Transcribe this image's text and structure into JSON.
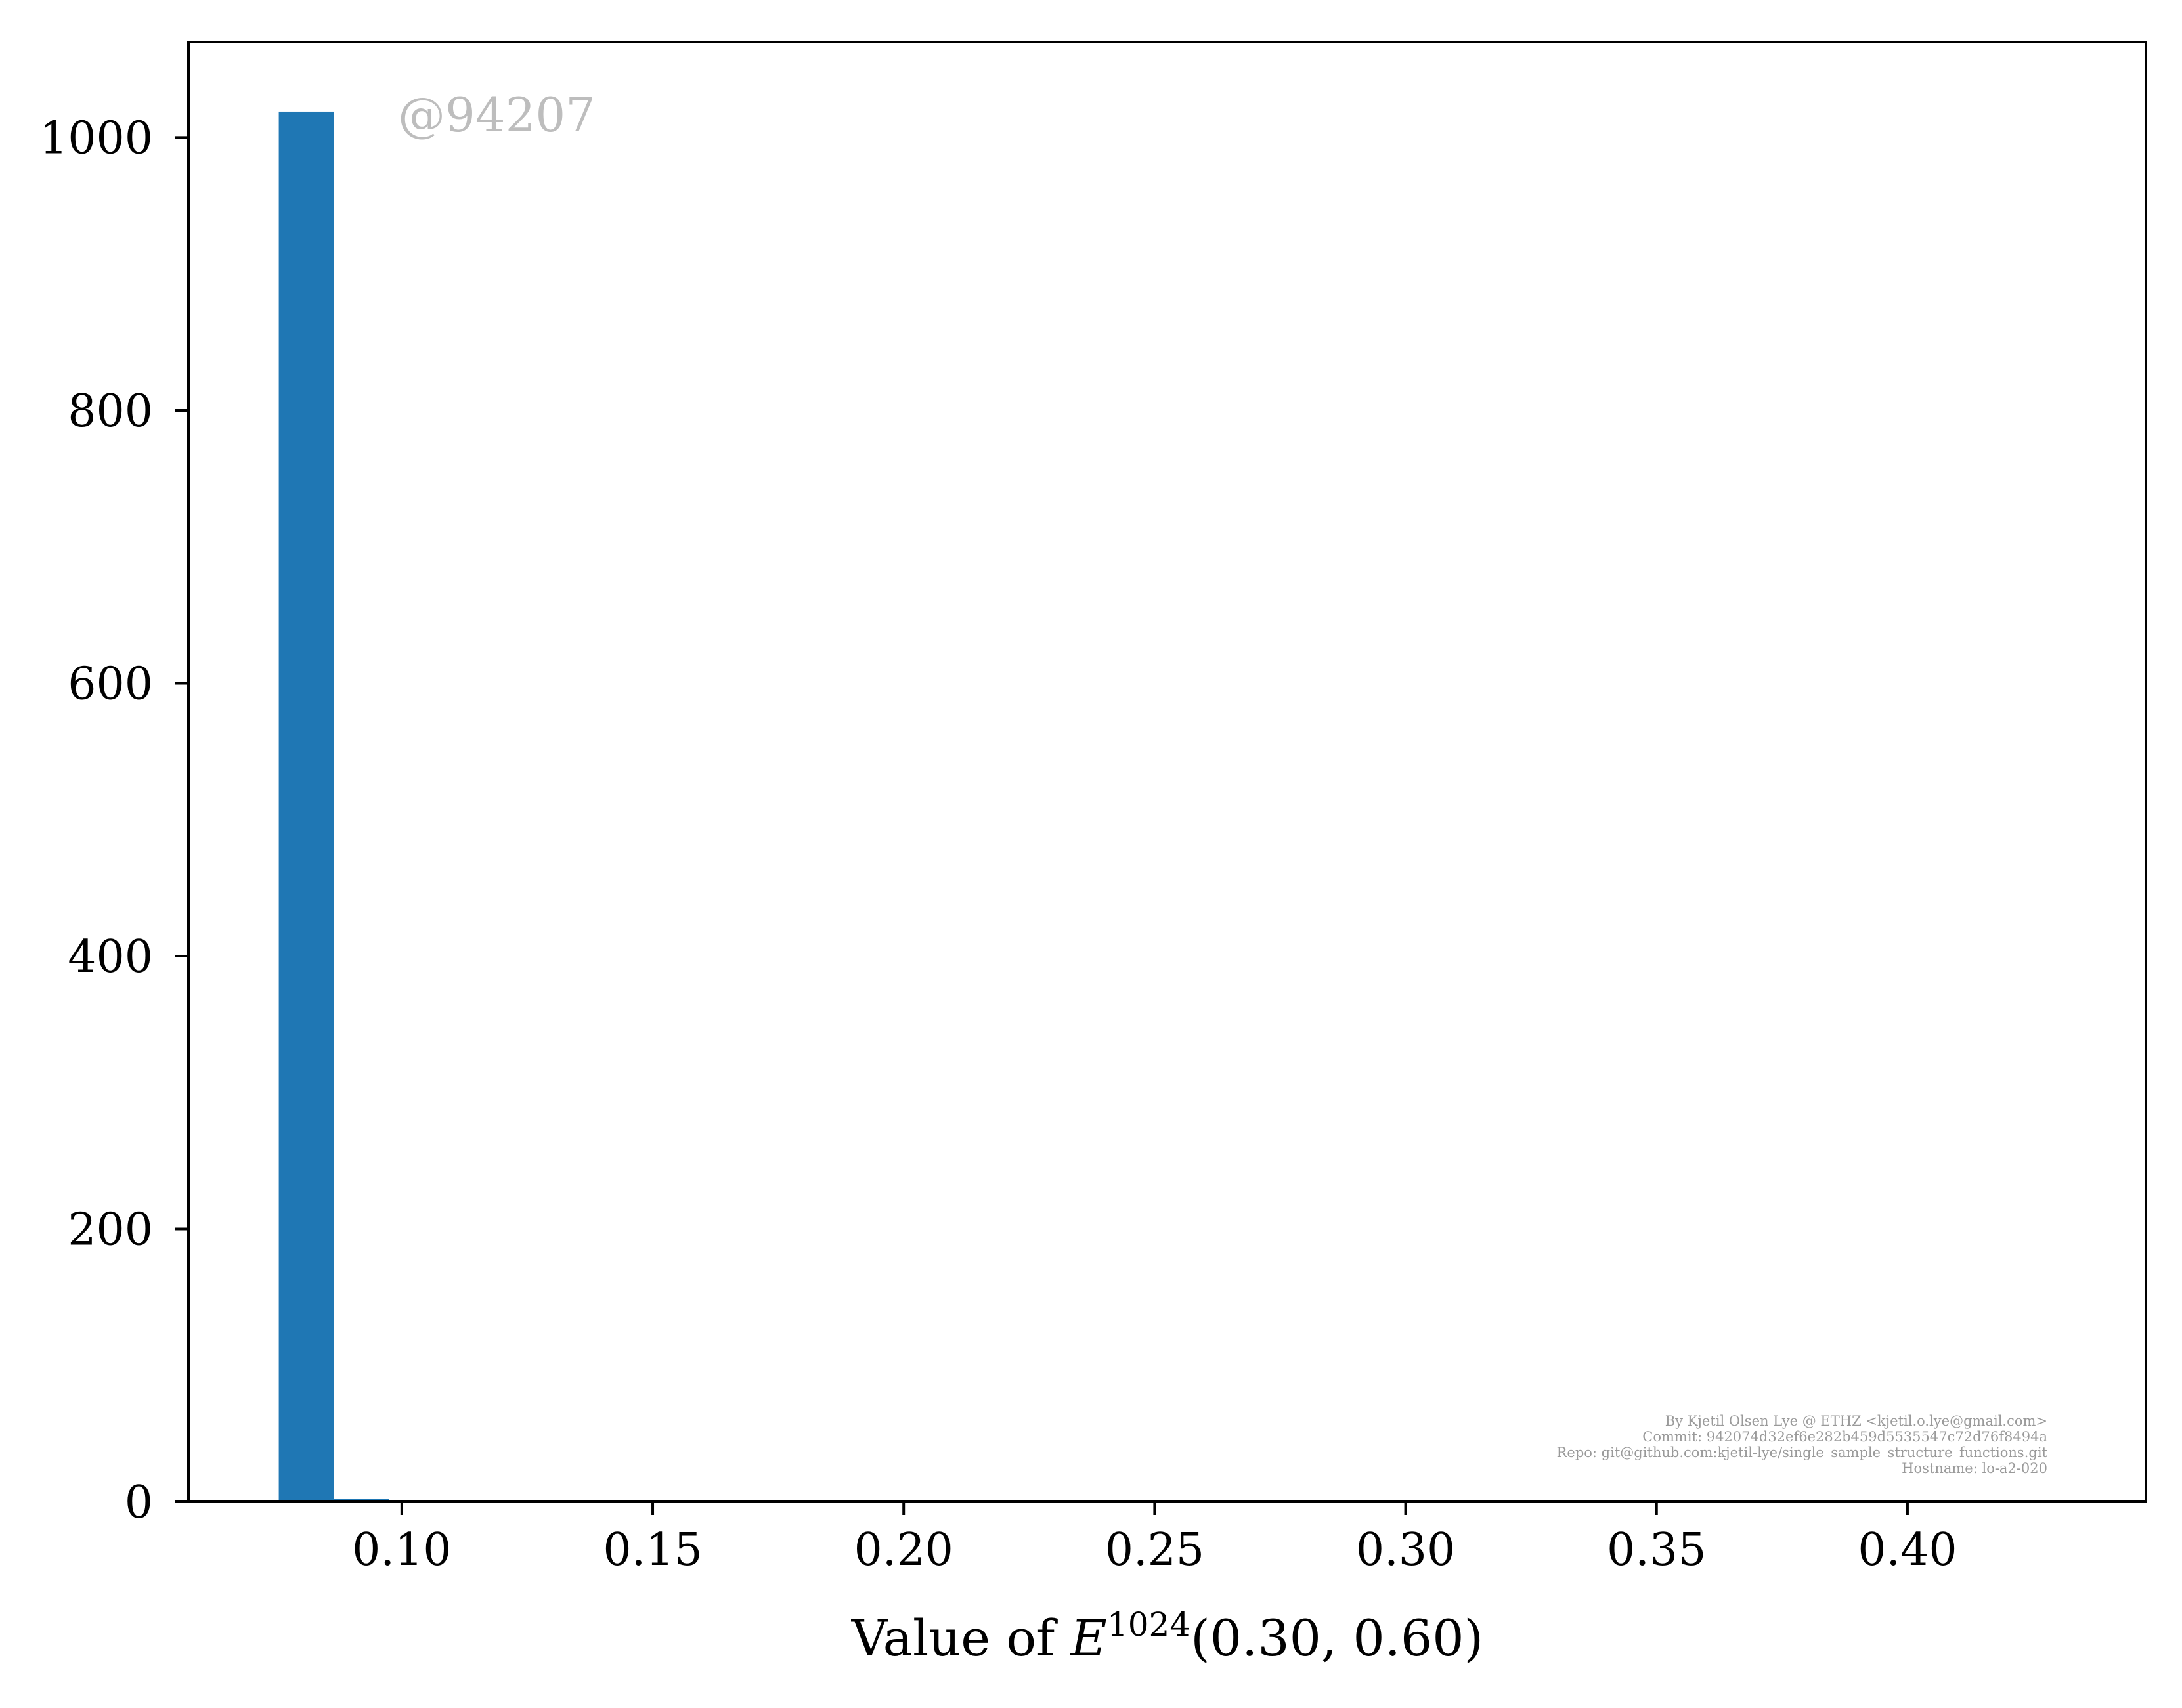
{
  "chart_data": {
    "type": "bar",
    "title": "",
    "xlabel": {
      "prefix": "Value of ",
      "symbol": "E",
      "superscript": "1024",
      "suffix": "(0.30, 0.60)"
    },
    "ylabel": "",
    "xlim": [
      0.0575,
      0.4475
    ],
    "ylim": [
      0,
      1070
    ],
    "x_ticks": [
      0.1,
      0.15,
      0.2,
      0.25,
      0.3,
      0.35,
      0.4
    ],
    "x_tick_labels": [
      "0.10",
      "0.15",
      "0.20",
      "0.25",
      "0.30",
      "0.35",
      "0.40"
    ],
    "y_ticks": [
      0,
      200,
      400,
      600,
      800,
      1000
    ],
    "y_tick_labels": [
      "0",
      "200",
      "400",
      "600",
      "800",
      "1000"
    ],
    "bin_edges": [
      0.0755,
      0.0865,
      0.0975
    ],
    "values": [
      1019,
      2
    ],
    "grid": false,
    "legend": "none",
    "bar_color": "#1f77b4",
    "watermark": "@94207",
    "footer_lines": [
      "By Kjetil Olsen Lye @ ETHZ <kjetil.o.lye@gmail.com>",
      "Commit: 942074d32ef6e282b459d5535547c72d76f8494a",
      "Repo: git@github.com:kjetil-lye/single_sample_structure_functions.git",
      "Hostname: lo-a2-020"
    ]
  }
}
